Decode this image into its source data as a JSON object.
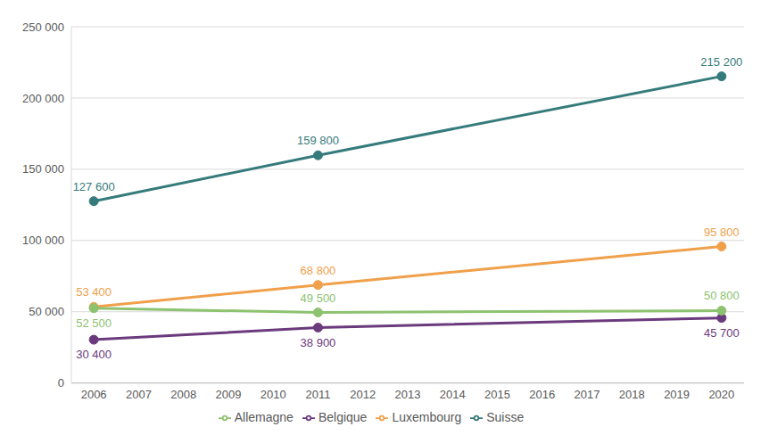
{
  "chart_data": {
    "type": "line",
    "x": [
      2006,
      2011,
      2020
    ],
    "xlim": [
      2005.5,
      2020.5
    ],
    "xticks": [
      2006,
      2007,
      2008,
      2009,
      2010,
      2011,
      2012,
      2013,
      2014,
      2015,
      2016,
      2017,
      2018,
      2019,
      2020
    ],
    "ylim": [
      0,
      250000
    ],
    "yticks": [
      {
        "value": 0,
        "label": "0"
      },
      {
        "value": 50000,
        "label": "50 000"
      },
      {
        "value": 100000,
        "label": "100 000"
      },
      {
        "value": 150000,
        "label": "150 000"
      },
      {
        "value": 200000,
        "label": "200 000"
      },
      {
        "value": 250000,
        "label": "250 000"
      }
    ],
    "grid": true,
    "legend": "bottom",
    "data_labels": true,
    "series": [
      {
        "name": "Suisse",
        "color": "#367b7b",
        "marker": "circle",
        "values": [
          127600,
          159800,
          215200
        ],
        "value_labels": [
          "127 600",
          "159 800",
          "215 200"
        ]
      },
      {
        "name": "Luxembourg",
        "color": "#f0a04b",
        "marker": "circle",
        "values": [
          53400,
          68800,
          95800
        ],
        "value_labels": [
          "53 400",
          "68 800",
          "95 800"
        ]
      },
      {
        "name": "Belgique",
        "color": "#6b3a7d",
        "marker": "circle",
        "values": [
          30400,
          38900,
          45700
        ],
        "value_labels": [
          "30 400",
          "38 900",
          "45 700"
        ]
      },
      {
        "name": "Allemagne",
        "color": "#8dc26f",
        "marker": "circle",
        "values": [
          52500,
          49500,
          50800
        ],
        "value_labels": [
          "52 500",
          "49 500",
          "50 800"
        ]
      }
    ]
  }
}
